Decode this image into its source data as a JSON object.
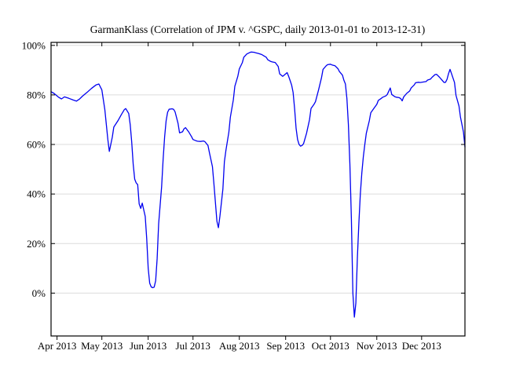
{
  "page": {
    "background": "#ffffff"
  },
  "chart_data": {
    "type": "line",
    "title": "GarmanKlass (Correlation of JPM v. ^GSPC, daily 2013-01-01 to 2013-12-31)",
    "xlabel": "",
    "ylabel": "",
    "legend": "none",
    "grid": {
      "horizontal": true,
      "vertical": false,
      "color": "#dcdcdc"
    },
    "line_color": "#0101f0",
    "axis_color": "#000000",
    "x_axis": {
      "range": [
        "2013-03-28",
        "2013-12-30"
      ],
      "ticks": [
        {
          "label": "Apr 2013",
          "date": "2013-04-01"
        },
        {
          "label": "May 2013",
          "date": "2013-05-01"
        },
        {
          "label": "Jun 2013",
          "date": "2013-06-01"
        },
        {
          "label": "Jul 2013",
          "date": "2013-07-01"
        },
        {
          "label": "Aug 2013",
          "date": "2013-08-01"
        },
        {
          "label": "Sep 2013",
          "date": "2013-09-01"
        },
        {
          "label": "Oct 2013",
          "date": "2013-10-01"
        },
        {
          "label": "Nov 2013",
          "date": "2013-11-01"
        },
        {
          "label": "Dec 2013",
          "date": "2013-12-01"
        }
      ]
    },
    "y_axis": {
      "unit": "%",
      "range_pct": [
        -17.3,
        101.2
      ],
      "ticks": [
        {
          "label": "0%",
          "value": 0
        },
        {
          "label": "20%",
          "value": 20
        },
        {
          "label": "40%",
          "value": 40
        },
        {
          "label": "60%",
          "value": 60
        },
        {
          "label": "80%",
          "value": 80
        },
        {
          "label": "100%",
          "value": 100
        }
      ]
    },
    "series": [
      {
        "name": "GarmanKlass",
        "unit": "%",
        "points": [
          [
            "2013-03-28",
            81.3
          ],
          [
            "2013-03-30",
            80.6
          ],
          [
            "2013-04-02",
            79.1
          ],
          [
            "2013-04-04",
            78.4
          ],
          [
            "2013-04-06",
            79.2
          ],
          [
            "2013-04-09",
            78.6
          ],
          [
            "2013-04-12",
            77.9
          ],
          [
            "2013-04-14",
            77.5
          ],
          [
            "2013-04-16",
            78.3
          ],
          [
            "2013-04-18",
            79.5
          ],
          [
            "2013-04-21",
            81.0
          ],
          [
            "2013-04-24",
            82.6
          ],
          [
            "2013-04-27",
            84.0
          ],
          [
            "2013-04-29",
            84.4
          ],
          [
            "2013-05-01",
            82.0
          ],
          [
            "2013-05-03",
            74.0
          ],
          [
            "2013-05-05",
            62.0
          ],
          [
            "2013-05-06",
            57.2
          ],
          [
            "2013-05-08",
            63.0
          ],
          [
            "2013-05-09",
            67.0
          ],
          [
            "2013-05-12",
            69.8
          ],
          [
            "2013-05-14",
            72.0
          ],
          [
            "2013-05-16",
            74.0
          ],
          [
            "2013-05-17",
            74.5
          ],
          [
            "2013-05-19",
            72.5
          ],
          [
            "2013-05-20",
            68.0
          ],
          [
            "2013-05-21",
            61.0
          ],
          [
            "2013-05-22",
            52.0
          ],
          [
            "2013-05-23",
            46.0
          ],
          [
            "2013-05-24",
            44.5
          ],
          [
            "2013-05-25",
            43.8
          ],
          [
            "2013-05-26",
            36.0
          ],
          [
            "2013-05-27",
            34.2
          ],
          [
            "2013-05-28",
            36.3
          ],
          [
            "2013-05-30",
            31.0
          ],
          [
            "2013-05-31",
            22.0
          ],
          [
            "2013-06-01",
            10.0
          ],
          [
            "2013-06-02",
            4.0
          ],
          [
            "2013-06-03",
            2.5
          ],
          [
            "2013-06-04",
            2.2
          ],
          [
            "2013-06-05",
            2.4
          ],
          [
            "2013-06-06",
            5.0
          ],
          [
            "2013-06-07",
            14.0
          ],
          [
            "2013-06-08",
            28.0
          ],
          [
            "2013-06-10",
            43.0
          ],
          [
            "2013-06-11",
            54.0
          ],
          [
            "2013-06-12",
            63.0
          ],
          [
            "2013-06-13",
            69.5
          ],
          [
            "2013-06-14",
            73.0
          ],
          [
            "2013-06-15",
            74.2
          ],
          [
            "2013-06-17",
            74.4
          ],
          [
            "2013-06-18",
            74.2
          ],
          [
            "2013-06-19",
            73.2
          ],
          [
            "2013-06-21",
            68.5
          ],
          [
            "2013-06-22",
            64.7
          ],
          [
            "2013-06-24",
            65.1
          ],
          [
            "2013-06-25",
            66.3
          ],
          [
            "2013-06-26",
            66.8
          ],
          [
            "2013-06-28",
            65.2
          ],
          [
            "2013-06-30",
            63.2
          ],
          [
            "2013-07-01",
            62.0
          ],
          [
            "2013-07-03",
            61.5
          ],
          [
            "2013-07-04",
            61.3
          ],
          [
            "2013-07-06",
            61.2
          ],
          [
            "2013-07-08",
            61.4
          ],
          [
            "2013-07-09",
            61.1
          ],
          [
            "2013-07-11",
            59.6
          ],
          [
            "2013-07-12",
            56.6
          ],
          [
            "2013-07-14",
            51.0
          ],
          [
            "2013-07-15",
            44.0
          ],
          [
            "2013-07-16",
            36.5
          ],
          [
            "2013-07-17",
            29.0
          ],
          [
            "2013-07-18",
            26.4
          ],
          [
            "2013-07-19",
            31.0
          ],
          [
            "2013-07-21",
            42.0
          ],
          [
            "2013-07-22",
            53.0
          ],
          [
            "2013-07-23",
            57.5
          ],
          [
            "2013-07-25",
            65.0
          ],
          [
            "2013-07-26",
            71.0
          ],
          [
            "2013-07-28",
            78.0
          ],
          [
            "2013-07-29",
            83.5
          ],
          [
            "2013-07-31",
            87.5
          ],
          [
            "2013-08-01",
            90.5
          ],
          [
            "2013-08-03",
            93.0
          ],
          [
            "2013-08-04",
            95.2
          ],
          [
            "2013-08-06",
            96.5
          ],
          [
            "2013-08-08",
            97.1
          ],
          [
            "2013-08-09",
            97.3
          ],
          [
            "2013-08-11",
            97.2
          ],
          [
            "2013-08-12",
            97.0
          ],
          [
            "2013-08-14",
            96.7
          ],
          [
            "2013-08-16",
            96.3
          ],
          [
            "2013-08-17",
            95.9
          ],
          [
            "2013-08-19",
            95.2
          ],
          [
            "2013-08-20",
            94.2
          ],
          [
            "2013-08-22",
            93.5
          ],
          [
            "2013-08-23",
            93.3
          ],
          [
            "2013-08-25",
            93.1
          ],
          [
            "2013-08-27",
            91.5
          ],
          [
            "2013-08-28",
            88.5
          ],
          [
            "2013-08-30",
            87.5
          ],
          [
            "2013-08-31",
            88.0
          ],
          [
            "2013-09-02",
            89.0
          ],
          [
            "2013-09-03",
            87.5
          ],
          [
            "2013-09-04",
            85.8
          ],
          [
            "2013-09-05",
            84.0
          ],
          [
            "2013-09-06",
            81.0
          ],
          [
            "2013-09-07",
            74.5
          ],
          [
            "2013-09-08",
            66.5
          ],
          [
            "2013-09-09",
            62.0
          ],
          [
            "2013-09-10",
            60.0
          ],
          [
            "2013-09-11",
            59.3
          ],
          [
            "2013-09-12",
            59.6
          ],
          [
            "2013-09-13",
            60.3
          ],
          [
            "2013-09-15",
            64.5
          ],
          [
            "2013-09-17",
            70.0
          ],
          [
            "2013-09-18",
            74.5
          ],
          [
            "2013-09-20",
            76.2
          ],
          [
            "2013-09-21",
            77.3
          ],
          [
            "2013-09-23",
            82.0
          ],
          [
            "2013-09-25",
            87.0
          ],
          [
            "2013-09-26",
            90.3
          ],
          [
            "2013-09-28",
            91.7
          ],
          [
            "2013-09-29",
            92.2
          ],
          [
            "2013-10-01",
            92.4
          ],
          [
            "2013-10-02",
            92.1
          ],
          [
            "2013-10-04",
            91.8
          ],
          [
            "2013-10-06",
            90.6
          ],
          [
            "2013-10-07",
            89.4
          ],
          [
            "2013-10-09",
            88.0
          ],
          [
            "2013-10-10",
            85.9
          ],
          [
            "2013-10-11",
            84.4
          ],
          [
            "2013-10-12",
            78.5
          ],
          [
            "2013-10-13",
            68.0
          ],
          [
            "2013-10-14",
            52.0
          ],
          [
            "2013-10-15",
            30.0
          ],
          [
            "2013-10-16",
            0.0
          ],
          [
            "2013-10-17",
            -9.7
          ],
          [
            "2013-10-18",
            -4.0
          ],
          [
            "2013-10-19",
            14.0
          ],
          [
            "2013-10-20",
            28.0
          ],
          [
            "2013-10-21",
            40.0
          ],
          [
            "2013-10-22",
            48.5
          ],
          [
            "2013-10-23",
            55.0
          ],
          [
            "2013-10-24",
            60.0
          ],
          [
            "2013-10-25",
            64.5
          ],
          [
            "2013-10-27",
            69.5
          ],
          [
            "2013-10-28",
            72.8
          ],
          [
            "2013-10-30",
            74.5
          ],
          [
            "2013-11-01",
            76.2
          ],
          [
            "2013-11-02",
            77.8
          ],
          [
            "2013-11-04",
            78.6
          ],
          [
            "2013-11-05",
            79.1
          ],
          [
            "2013-11-07",
            79.6
          ],
          [
            "2013-11-08",
            80.2
          ],
          [
            "2013-11-09",
            81.5
          ],
          [
            "2013-11-10",
            82.8
          ],
          [
            "2013-11-11",
            80.2
          ],
          [
            "2013-11-13",
            79.3
          ],
          [
            "2013-11-14",
            79.1
          ],
          [
            "2013-11-16",
            78.9
          ],
          [
            "2013-11-17",
            78.5
          ],
          [
            "2013-11-18",
            77.6
          ],
          [
            "2013-11-19",
            79.2
          ],
          [
            "2013-11-21",
            80.6
          ],
          [
            "2013-11-23",
            81.6
          ],
          [
            "2013-11-24",
            82.8
          ],
          [
            "2013-11-26",
            84.0
          ],
          [
            "2013-11-27",
            84.9
          ],
          [
            "2013-11-29",
            85.1
          ],
          [
            "2013-11-30",
            85.0
          ],
          [
            "2013-12-02",
            85.2
          ],
          [
            "2013-12-04",
            85.4
          ],
          [
            "2013-12-05",
            86.0
          ],
          [
            "2013-12-07",
            86.4
          ],
          [
            "2013-12-08",
            87.1
          ],
          [
            "2013-12-10",
            88.2
          ],
          [
            "2013-12-11",
            88.3
          ],
          [
            "2013-12-13",
            87.1
          ],
          [
            "2013-12-14",
            86.4
          ],
          [
            "2013-12-16",
            85.0
          ],
          [
            "2013-12-17",
            85.1
          ],
          [
            "2013-12-18",
            86.3
          ],
          [
            "2013-12-19",
            88.6
          ],
          [
            "2013-12-20",
            90.3
          ],
          [
            "2013-12-21",
            88.6
          ],
          [
            "2013-12-23",
            85.0
          ],
          [
            "2013-12-24",
            79.8
          ],
          [
            "2013-12-26",
            75.5
          ],
          [
            "2013-12-27",
            71.0
          ],
          [
            "2013-12-29",
            65.0
          ],
          [
            "2013-12-30",
            59.0
          ]
        ]
      }
    ]
  }
}
